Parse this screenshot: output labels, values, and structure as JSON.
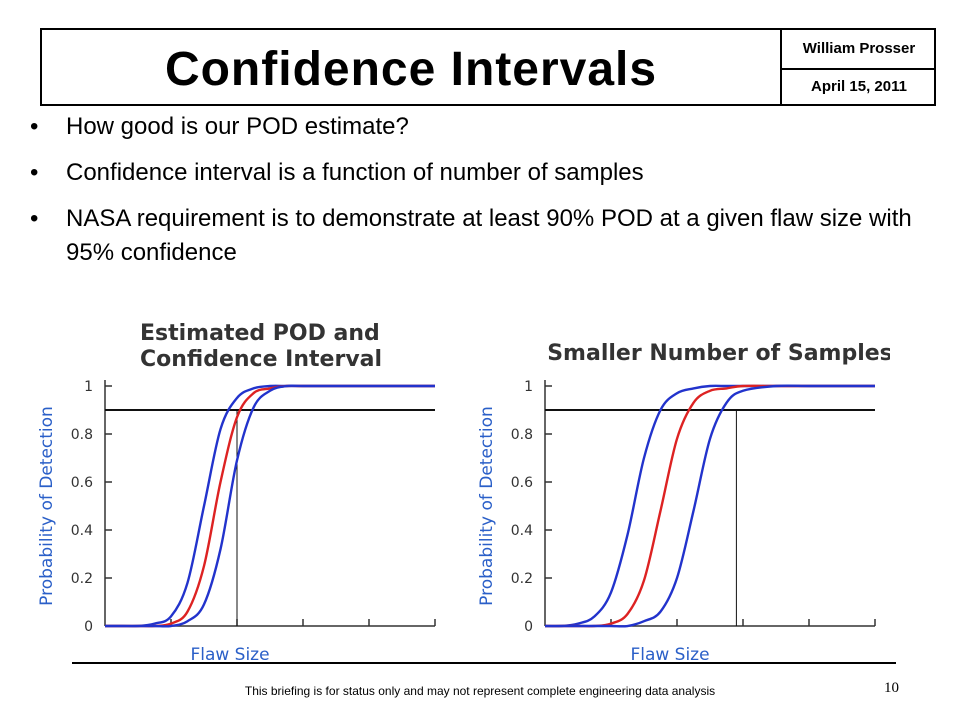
{
  "slide": {
    "title": "Confidence Intervals",
    "author": "William Prosser",
    "date": "April 15, 2011",
    "bullets": [
      "How good is our POD estimate?",
      "Confidence interval is a function of number of samples",
      "NASA requirement is to demonstrate at least 90% POD at a given flaw size with 95% confidence"
    ],
    "bullet_glyph": "•",
    "footer": "This briefing is for status only and may not represent complete engineering data analysis",
    "page_number": "10"
  },
  "chart_data": [
    {
      "type": "line",
      "title": "Estimated POD and Confidence Interval",
      "xlabel": "Flaw Size",
      "ylabel": "Probability of Detection",
      "ylim": [
        0,
        1
      ],
      "xlim": [
        0,
        5
      ],
      "yticks": [
        "0",
        "0.2",
        "0.4",
        "0.6",
        "0.8",
        "1"
      ],
      "threshold": 0.9,
      "threshold_flaw_size": 2.0,
      "series": [
        {
          "color": "#2233cc",
          "x": [
            0,
            0.25,
            0.5,
            0.75,
            1.0,
            1.25,
            1.5,
            1.75,
            2.0,
            2.25,
            2.5,
            2.75,
            3.0,
            3.5,
            4.0,
            4.5,
            5.0
          ],
          "y": [
            0.0,
            0.0,
            0.0,
            0.01,
            0.04,
            0.18,
            0.5,
            0.82,
            0.95,
            0.99,
            1.0,
            1.0,
            1.0,
            1.0,
            1.0,
            1.0,
            1.0
          ]
        },
        {
          "color": "#dd2222",
          "x": [
            0,
            0.25,
            0.5,
            0.75,
            1.0,
            1.25,
            1.5,
            1.75,
            2.0,
            2.25,
            2.5,
            2.75,
            3.0,
            3.5,
            4.0,
            4.5,
            5.0
          ],
          "y": [
            0.0,
            0.0,
            0.0,
            0.0,
            0.01,
            0.06,
            0.25,
            0.6,
            0.87,
            0.97,
            0.99,
            1.0,
            1.0,
            1.0,
            1.0,
            1.0,
            1.0
          ]
        },
        {
          "color": "#2233cc",
          "x": [
            0,
            0.25,
            0.5,
            0.75,
            1.0,
            1.25,
            1.5,
            1.75,
            2.0,
            2.25,
            2.5,
            2.75,
            3.0,
            3.5,
            4.0,
            4.5,
            5.0
          ],
          "y": [
            0.0,
            0.0,
            0.0,
            0.0,
            0.0,
            0.02,
            0.09,
            0.32,
            0.69,
            0.91,
            0.98,
            1.0,
            1.0,
            1.0,
            1.0,
            1.0,
            1.0
          ]
        }
      ]
    },
    {
      "type": "line",
      "title": "Smaller Number of Samples",
      "xlabel": "Flaw Size",
      "ylabel": "Probability of Detection",
      "ylim": [
        0,
        1
      ],
      "xlim": [
        0,
        5
      ],
      "yticks": [
        "0",
        "0.2",
        "0.4",
        "0.6",
        "0.8",
        "1"
      ],
      "threshold": 0.9,
      "threshold_flaw_size": 2.9,
      "series": [
        {
          "color": "#2233cc",
          "x": [
            0,
            0.25,
            0.5,
            0.75,
            1.0,
            1.25,
            1.5,
            1.75,
            2.0,
            2.25,
            2.5,
            2.75,
            3.0,
            3.5,
            4.0,
            4.5,
            5.0
          ],
          "y": [
            0.0,
            0.0,
            0.01,
            0.04,
            0.14,
            0.38,
            0.7,
            0.9,
            0.97,
            0.99,
            1.0,
            1.0,
            1.0,
            1.0,
            1.0,
            1.0,
            1.0
          ]
        },
        {
          "color": "#dd2222",
          "x": [
            0,
            0.25,
            0.5,
            0.75,
            1.0,
            1.25,
            1.5,
            1.75,
            2.0,
            2.25,
            2.5,
            2.75,
            3.0,
            3.5,
            4.0,
            4.5,
            5.0
          ],
          "y": [
            0.0,
            0.0,
            0.0,
            0.0,
            0.01,
            0.05,
            0.19,
            0.48,
            0.78,
            0.93,
            0.98,
            0.99,
            1.0,
            1.0,
            1.0,
            1.0,
            1.0
          ]
        },
        {
          "color": "#2233cc",
          "x": [
            0,
            0.25,
            0.5,
            0.75,
            1.0,
            1.25,
            1.5,
            1.75,
            2.0,
            2.25,
            2.5,
            2.75,
            3.0,
            3.5,
            4.0,
            4.5,
            5.0
          ],
          "y": [
            0.0,
            0.0,
            0.0,
            0.0,
            0.0,
            0.0,
            0.02,
            0.06,
            0.2,
            0.48,
            0.78,
            0.93,
            0.98,
            1.0,
            1.0,
            1.0,
            1.0
          ]
        }
      ]
    }
  ]
}
